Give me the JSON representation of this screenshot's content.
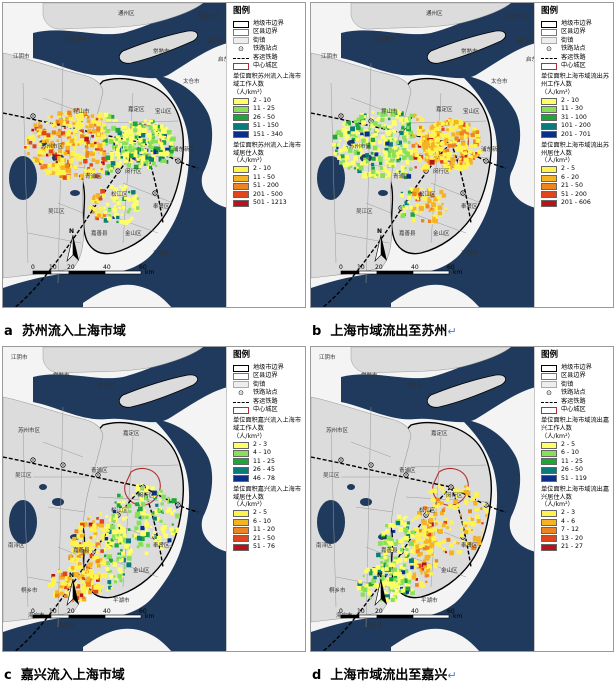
{
  "legend_common": {
    "title": "图例",
    "city_boundary": "地级市边界",
    "county_boundary": "区县边界",
    "town": "街镇",
    "station": "铁路站点",
    "railway": "客运铁路",
    "center_district": "中心城区"
  },
  "scale_bar": {
    "ticks": [
      "0",
      "10",
      "20",
      "40",
      "60"
    ],
    "unit": "km"
  },
  "north_label": "N",
  "place_labels": {
    "a": [
      "通州区",
      "张家港市",
      "江阴市",
      "常熟市",
      "太仓市",
      "昆山市",
      "苏州市区",
      "吴江区",
      "青浦区",
      "嘉定区",
      "宝山区",
      "浦东新区",
      "闵行区",
      "松江区",
      "奉贤区",
      "金山区",
      "嘉善县",
      "平湖市",
      "南通市区",
      "海门市",
      "启东市"
    ],
    "b": [
      "通州区",
      "张家港市",
      "江阴市",
      "常熟市",
      "太仓市",
      "昆山市",
      "苏州市区",
      "吴江区",
      "青浦区",
      "嘉定区",
      "宝山区",
      "浦东新区",
      "闵行区",
      "松江区",
      "奉贤区",
      "金山区",
      "嘉善县",
      "平湖市",
      "南通市区",
      "海门市",
      "启东市"
    ],
    "c": [
      "江阴市",
      "常熟市",
      "太仓市",
      "苏州市区",
      "吴江区",
      "嘉定区",
      "青浦区",
      "松江区",
      "闵行区",
      "奉贤区",
      "金山区",
      "嘉善县",
      "平湖市",
      "南浔区",
      "桐乡市",
      "海盐县",
      "海宁市"
    ],
    "d": [
      "江阴市",
      "常熟市",
      "太仓市",
      "苏州市区",
      "吴江区",
      "嘉定区",
      "青浦区",
      "松江区",
      "闵行区",
      "奉贤区",
      "金山区",
      "嘉善县",
      "平湖市",
      "南浔区",
      "桐乡市",
      "海盐县",
      "海宁市"
    ]
  },
  "panels": [
    {
      "id": "a",
      "caption_letter": "a",
      "caption": "苏州流入上海市域",
      "series1": {
        "title": "单位面积苏州流入上海市域工作人数",
        "unit": "（人/km²）",
        "classes": [
          {
            "label": "2 - 10",
            "color": "#ffff66"
          },
          {
            "label": "11 - 25",
            "color": "#88e05a"
          },
          {
            "label": "26 - 50",
            "color": "#1fa63a"
          },
          {
            "label": "51 - 150",
            "color": "#0a7a7a"
          },
          {
            "label": "151 - 340",
            "color": "#0a2f8a"
          }
        ]
      },
      "series2": {
        "title": "单位面积苏州流入上海市域居住人数",
        "unit": "（人/km²）",
        "classes": [
          {
            "label": "2 - 10",
            "color": "#fff34d"
          },
          {
            "label": "11 - 50",
            "color": "#f5b323"
          },
          {
            "label": "51 - 200",
            "color": "#ee8420"
          },
          {
            "label": "201 - 500",
            "color": "#e0461e"
          },
          {
            "label": "501 - 1213",
            "color": "#b8121a"
          }
        ]
      }
    },
    {
      "id": "b",
      "caption_letter": "b",
      "caption": "上海市域流出至苏州",
      "caption_suffix": "↵",
      "series1": {
        "title": "单位面积上海市域流出苏州工作人数",
        "unit": "（人/km²）",
        "classes": [
          {
            "label": "2 - 10",
            "color": "#ffff66"
          },
          {
            "label": "11 - 30",
            "color": "#88e05a"
          },
          {
            "label": "31 - 100",
            "color": "#1fa63a"
          },
          {
            "label": "101 - 200",
            "color": "#0a7a7a"
          },
          {
            "label": "201 - 701",
            "color": "#0a2f8a"
          }
        ]
      },
      "series2": {
        "title": "单位面积上海市域流出苏州居住人数",
        "unit": "（人/km²）",
        "classes": [
          {
            "label": "2 - 5",
            "color": "#fff34d"
          },
          {
            "label": "6 - 20",
            "color": "#f5b323"
          },
          {
            "label": "21 - 50",
            "color": "#ee8420"
          },
          {
            "label": "51 - 200",
            "color": "#e0461e"
          },
          {
            "label": "201 - 606",
            "color": "#b8121a"
          }
        ]
      }
    },
    {
      "id": "c",
      "caption_letter": "c",
      "caption": "嘉兴流入上海市域",
      "series1": {
        "title": "单位面积嘉兴流入上海市域工作人数",
        "unit": "（人/km²）",
        "classes": [
          {
            "label": "2 - 3",
            "color": "#ffff66"
          },
          {
            "label": "4 - 10",
            "color": "#88e05a"
          },
          {
            "label": "11 - 25",
            "color": "#1fa63a"
          },
          {
            "label": "26 - 45",
            "color": "#0a7a7a"
          },
          {
            "label": "46 - 78",
            "color": "#0a2f8a"
          }
        ]
      },
      "series2": {
        "title": "单位面积嘉兴流入上海市域居住人数",
        "unit": "（人/km²）",
        "classes": [
          {
            "label": "2 - 5",
            "color": "#fff34d"
          },
          {
            "label": "6 - 10",
            "color": "#f5b323"
          },
          {
            "label": "11 - 20",
            "color": "#ee8420"
          },
          {
            "label": "21 - 50",
            "color": "#e0461e"
          },
          {
            "label": "51 - 76",
            "color": "#b8121a"
          }
        ]
      }
    },
    {
      "id": "d",
      "caption_letter": "d",
      "caption": "上海市域流出至嘉兴",
      "caption_suffix": "↵",
      "series1": {
        "title": "单位面积上海市域流出嘉兴工作人数",
        "unit": "（人/km²）",
        "classes": [
          {
            "label": "2 - 5",
            "color": "#ffff66"
          },
          {
            "label": "6 - 10",
            "color": "#88e05a"
          },
          {
            "label": "11 - 25",
            "color": "#1fa63a"
          },
          {
            "label": "26 - 50",
            "color": "#0a7a7a"
          },
          {
            "label": "51 - 119",
            "color": "#0a2f8a"
          }
        ]
      },
      "series2": {
        "title": "单位面积上海市域流出嘉兴居住人数",
        "unit": "（人/km²）",
        "classes": [
          {
            "label": "2 - 3",
            "color": "#fff34d"
          },
          {
            "label": "4 - 6",
            "color": "#f5b323"
          },
          {
            "label": "7 - 12",
            "color": "#ee8420"
          },
          {
            "label": "13 - 20",
            "color": "#e0461e"
          },
          {
            "label": "21 - 27",
            "color": "#b8121a"
          }
        ]
      }
    }
  ]
}
